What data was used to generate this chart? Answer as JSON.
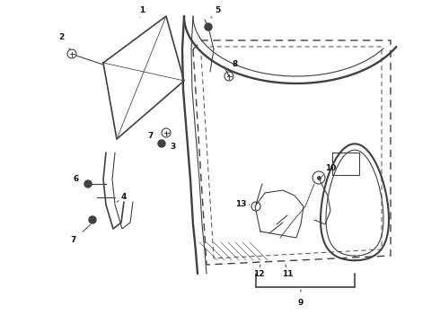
{
  "bg_color": "#ffffff",
  "line_color": "#404040",
  "figsize": [
    4.9,
    3.6
  ],
  "dpi": 100
}
